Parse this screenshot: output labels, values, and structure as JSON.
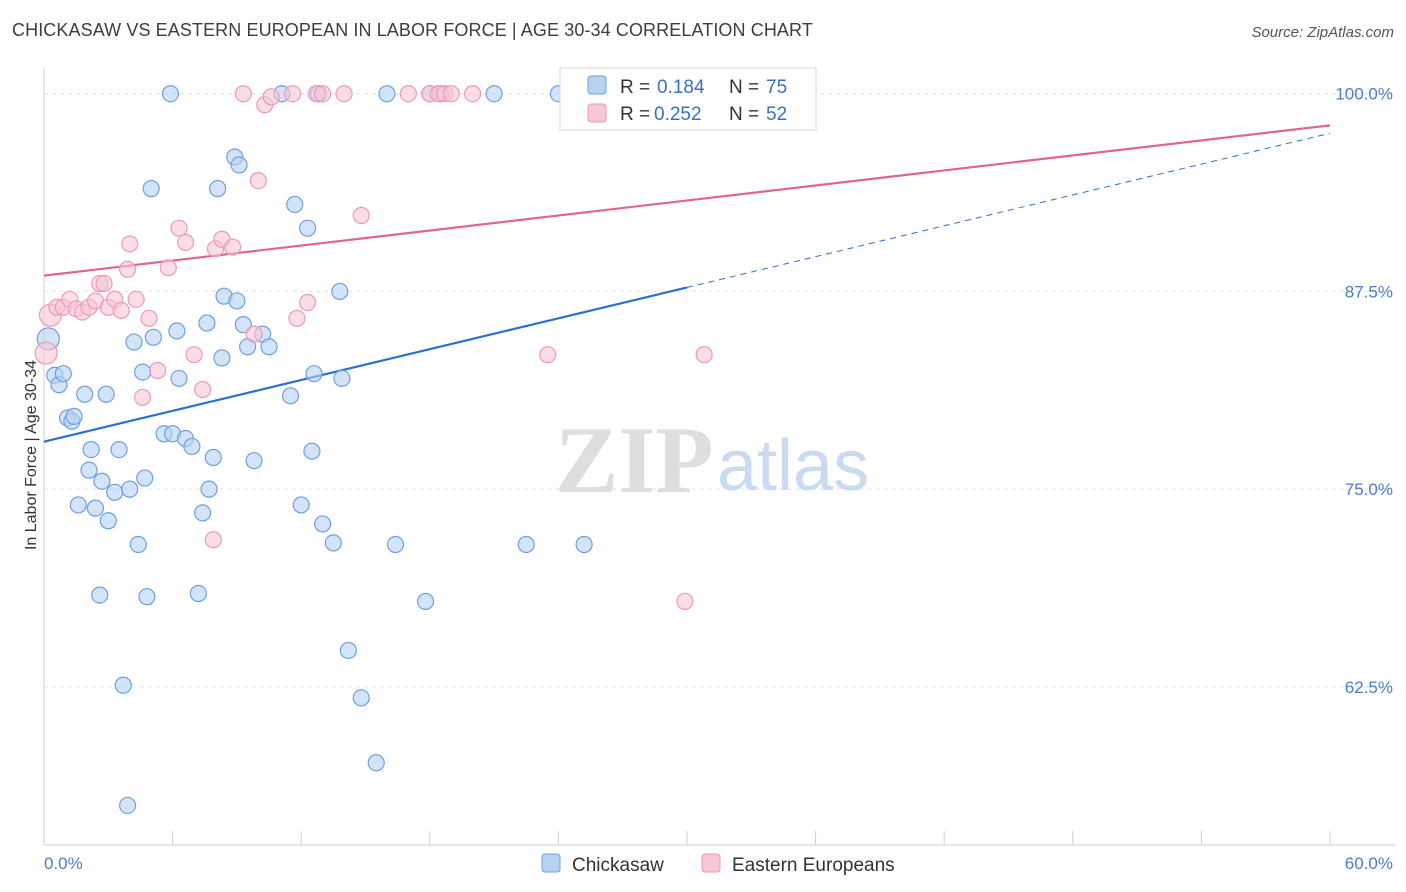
{
  "title": "CHICKASAW VS EASTERN EUROPEAN IN LABOR FORCE | AGE 30-34 CORRELATION CHART",
  "source": "Source: ZipAtlas.com",
  "watermark": {
    "zip": "ZIP",
    "atlas": "atlas"
  },
  "chart_data": {
    "type": "scatter",
    "ylabel": "In Labor Force | Age 30-34",
    "xlim": [
      0,
      60
    ],
    "ylim": [
      52.5,
      101.5
    ],
    "x_tick_labels": [
      "0.0%",
      "60.0%"
    ],
    "y_ticks": [
      62.5,
      75.0,
      87.5,
      100.0
    ],
    "y_tick_labels": [
      "62.5%",
      "75.0%",
      "87.5%",
      "100.0%"
    ],
    "grid": true,
    "legend_top": [
      {
        "r_label": "R =",
        "r": "0.184",
        "n_label": "N =",
        "n": "75"
      },
      {
        "r_label": "R =",
        "r": "0.252",
        "n_label": "N =",
        "n": "52"
      }
    ],
    "series": [
      {
        "name": "Chickasaw",
        "color": "#6f9fe0",
        "fill": "#b8d2f3",
        "line_color": "#2c6fcf",
        "trend": {
          "x0": 0,
          "y0": 78.0,
          "x1": 60,
          "y1": 97.5,
          "solid_until": 30
        },
        "points": [
          [
            0.2,
            84.5
          ],
          [
            0.5,
            82.2
          ],
          [
            0.7,
            81.6
          ],
          [
            0.9,
            82.3
          ],
          [
            1.1,
            79.5
          ],
          [
            1.3,
            79.3
          ],
          [
            1.4,
            79.6
          ],
          [
            1.6,
            74.0
          ],
          [
            1.9,
            81.0
          ],
          [
            2.1,
            76.2
          ],
          [
            2.2,
            77.5
          ],
          [
            2.4,
            73.8
          ],
          [
            2.6,
            68.3
          ],
          [
            2.7,
            75.5
          ],
          [
            2.9,
            81.0
          ],
          [
            3.0,
            73.0
          ],
          [
            3.3,
            74.8
          ],
          [
            3.5,
            77.5
          ],
          [
            3.7,
            62.6
          ],
          [
            3.9,
            55.0
          ],
          [
            4.0,
            75.0
          ],
          [
            4.2,
            84.3
          ],
          [
            4.4,
            71.5
          ],
          [
            4.6,
            82.4
          ],
          [
            4.7,
            75.7
          ],
          [
            4.8,
            68.2
          ],
          [
            5.0,
            94.0
          ],
          [
            5.1,
            84.6
          ],
          [
            5.6,
            78.5
          ],
          [
            5.9,
            100.0
          ],
          [
            6.0,
            78.5
          ],
          [
            6.2,
            85.0
          ],
          [
            6.3,
            82.0
          ],
          [
            6.6,
            78.2
          ],
          [
            6.9,
            77.7
          ],
          [
            7.2,
            68.4
          ],
          [
            7.4,
            73.5
          ],
          [
            7.6,
            85.5
          ],
          [
            7.7,
            75.0
          ],
          [
            7.9,
            77.0
          ],
          [
            8.1,
            94.0
          ],
          [
            8.3,
            83.3
          ],
          [
            8.4,
            87.2
          ],
          [
            8.9,
            96.0
          ],
          [
            9.0,
            86.9
          ],
          [
            9.1,
            95.5
          ],
          [
            9.3,
            85.4
          ],
          [
            9.5,
            84.0
          ],
          [
            9.8,
            76.8
          ],
          [
            10.2,
            84.8
          ],
          [
            10.5,
            84.0
          ],
          [
            11.1,
            100.0
          ],
          [
            11.5,
            80.9
          ],
          [
            11.7,
            93.0
          ],
          [
            12.0,
            74.0
          ],
          [
            12.3,
            91.5
          ],
          [
            12.5,
            77.4
          ],
          [
            12.6,
            82.3
          ],
          [
            12.8,
            100.0
          ],
          [
            13.0,
            72.8
          ],
          [
            13.5,
            71.6
          ],
          [
            13.8,
            87.5
          ],
          [
            13.9,
            82.0
          ],
          [
            14.2,
            64.8
          ],
          [
            14.8,
            61.8
          ],
          [
            15.5,
            57.7
          ],
          [
            16.0,
            100.0
          ],
          [
            16.4,
            71.5
          ],
          [
            17.8,
            67.9
          ],
          [
            21.0,
            100.0
          ],
          [
            22.5,
            71.5
          ],
          [
            24.0,
            100.0
          ],
          [
            25.2,
            71.5
          ],
          [
            18.0,
            100.0
          ],
          [
            18.5,
            100.0
          ]
        ]
      },
      {
        "name": "Eastern Europeans",
        "color": "#ee9ab5",
        "fill": "#f7c7d6",
        "line_color": "#e0658f",
        "trend": {
          "x0": 0,
          "y0": 88.5,
          "x1": 60,
          "y1": 98.0,
          "solid_until": 60
        },
        "points": [
          [
            0.1,
            83.6
          ],
          [
            0.3,
            86.0
          ],
          [
            0.6,
            86.5
          ],
          [
            0.9,
            86.5
          ],
          [
            1.2,
            87.0
          ],
          [
            1.5,
            86.4
          ],
          [
            1.8,
            86.2
          ],
          [
            2.1,
            86.5
          ],
          [
            2.4,
            86.9
          ],
          [
            2.6,
            88.0
          ],
          [
            2.8,
            88.0
          ],
          [
            3.0,
            86.5
          ],
          [
            3.3,
            87.0
          ],
          [
            3.6,
            86.3
          ],
          [
            3.9,
            88.9
          ],
          [
            4.0,
            90.5
          ],
          [
            4.3,
            87.0
          ],
          [
            4.6,
            80.8
          ],
          [
            4.9,
            85.8
          ],
          [
            5.3,
            82.5
          ],
          [
            5.8,
            89.0
          ],
          [
            6.3,
            91.5
          ],
          [
            6.6,
            90.6
          ],
          [
            7.0,
            83.5
          ],
          [
            7.4,
            81.3
          ],
          [
            7.9,
            71.8
          ],
          [
            8.0,
            90.2
          ],
          [
            8.3,
            90.8
          ],
          [
            8.8,
            90.3
          ],
          [
            9.3,
            100.0
          ],
          [
            9.8,
            84.8
          ],
          [
            10.0,
            94.5
          ],
          [
            10.3,
            99.3
          ],
          [
            10.6,
            99.8
          ],
          [
            11.6,
            100.0
          ],
          [
            11.8,
            85.8
          ],
          [
            12.3,
            86.8
          ],
          [
            12.7,
            100.0
          ],
          [
            13.0,
            100.0
          ],
          [
            14.0,
            100.0
          ],
          [
            14.8,
            92.3
          ],
          [
            17.0,
            100.0
          ],
          [
            18.0,
            100.0
          ],
          [
            18.4,
            100.0
          ],
          [
            18.7,
            100.0
          ],
          [
            19.0,
            100.0
          ],
          [
            20.0,
            100.0
          ],
          [
            23.5,
            83.5
          ],
          [
            29.9,
            67.9
          ],
          [
            30.8,
            83.5
          ],
          [
            35.0,
            100.0
          ],
          [
            35.5,
            100.0
          ]
        ]
      }
    ]
  }
}
